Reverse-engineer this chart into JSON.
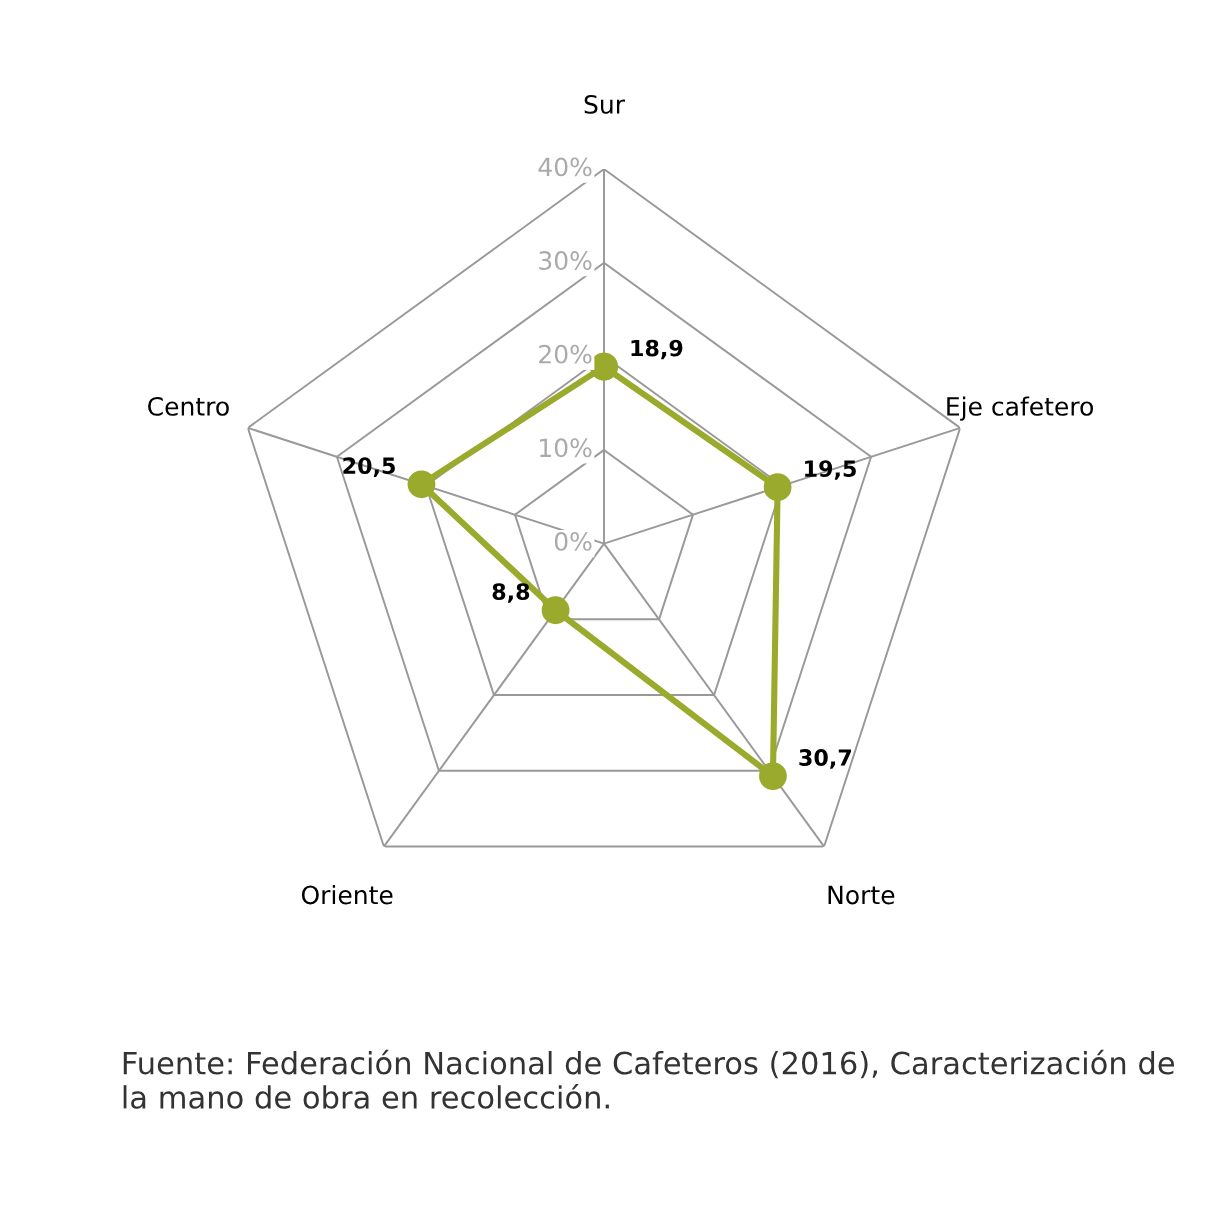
{
  "chart_data": {
    "type": "radar",
    "categories": [
      "Sur",
      "Eje cafetero",
      "Norte",
      "Oriente",
      "Centro"
    ],
    "series": [
      {
        "color": "#9aaa2c",
        "values": [
          18.9,
          19.5,
          30.7,
          8.8,
          20.5
        ],
        "value_labels": [
          "18,9",
          "19,5",
          "30,7",
          "8,8",
          "20,5"
        ]
      }
    ],
    "ylim": [
      0,
      40
    ],
    "yticks": [
      {
        "value": 0,
        "label": "0%"
      },
      {
        "value": 10,
        "label": "10%"
      },
      {
        "value": 20,
        "label": "20%"
      },
      {
        "value": 30,
        "label": "30%"
      },
      {
        "value": 40,
        "label": "40%"
      }
    ],
    "grid": true,
    "marker": "circle",
    "line_style": "solid",
    "legend": false,
    "annotations": [
      "Fuente: Federación Nacional de Cafeteros (2016), Caracterización de la mano de obra en recolección."
    ]
  }
}
